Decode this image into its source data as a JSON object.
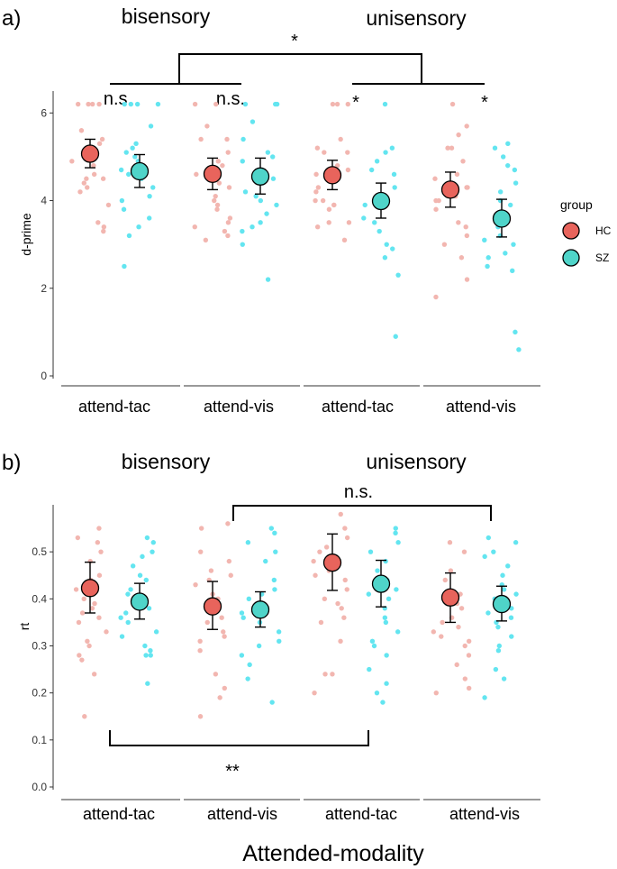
{
  "figure": {
    "x_title": "Attended-modality",
    "colors": {
      "HC": "#e8645c",
      "HC_jitter": "#f2b6b0",
      "SZ": "#4fd4c9",
      "SZ_jitter": "#63e5f0",
      "axis": "#333333",
      "bracket": "#000000"
    }
  },
  "legend": {
    "title": "group",
    "items": [
      {
        "name": "HC",
        "label": "HC",
        "color": "#e8645c"
      },
      {
        "name": "SZ",
        "label": "SZ",
        "color": "#4fd4c9"
      }
    ]
  },
  "chart_data": [
    {
      "type": "scatter",
      "panel": "a)",
      "title": "",
      "ylabel": "d-prime",
      "xlabel": "",
      "ylim": [
        0,
        6.5
      ],
      "yticks": [
        0,
        2,
        4,
        6
      ],
      "groups": [
        "bisensory",
        "unisensory"
      ],
      "categories": [
        "attend-tac",
        "attend-vis",
        "attend-tac",
        "attend-vis"
      ],
      "series": [
        {
          "name": "HC",
          "mean": [
            5.07,
            4.61,
            4.58,
            4.25
          ],
          "ci_low": [
            4.75,
            4.25,
            4.25,
            3.85
          ],
          "ci_high": [
            5.4,
            4.97,
            4.92,
            4.65
          ],
          "points": [
            [
              6.2,
              6.2,
              6.2,
              6.2,
              5.6,
              5.4,
              5.3,
              5.2,
              5.1,
              5.0,
              4.9,
              4.8,
              4.6,
              4.5,
              4.5,
              4.4,
              4.3,
              4.2,
              3.9,
              3.5,
              3.4,
              3.3
            ],
            [
              6.2,
              6.2,
              5.7,
              5.4,
              5.4,
              5.1,
              4.9,
              4.8,
              4.6,
              4.4,
              4.3,
              4.1,
              4.0,
              3.9,
              3.8,
              3.6,
              3.5,
              3.4,
              3.3,
              3.2,
              3.1
            ],
            [
              6.2,
              6.2,
              6.2,
              5.4,
              5.2,
              5.1,
              5.1,
              4.8,
              4.7,
              4.6,
              4.3,
              4.2,
              4.0,
              4.0,
              3.9,
              3.9,
              3.8,
              3.5,
              3.5,
              3.4,
              3.1
            ],
            [
              6.2,
              5.7,
              5.5,
              5.2,
              5.2,
              4.9,
              4.6,
              4.5,
              4.3,
              4.3,
              4.1,
              4.0,
              4.0,
              3.8,
              3.5,
              3.4,
              3.2,
              3.0,
              2.7,
              2.2,
              1.8
            ]
          ]
        },
        {
          "name": "SZ",
          "mean": [
            4.67,
            4.55,
            3.99,
            3.59
          ],
          "ci_low": [
            4.3,
            4.15,
            3.6,
            3.17
          ],
          "ci_high": [
            5.05,
            4.97,
            4.4,
            4.03
          ],
          "points": [
            [
              6.2,
              6.2,
              6.2,
              6.2,
              5.7,
              5.3,
              5.2,
              5.1,
              5.0,
              4.9,
              4.7,
              4.6,
              4.5,
              4.3,
              4.1,
              4.0,
              3.8,
              3.6,
              3.4,
              3.2,
              2.5
            ],
            [
              6.2,
              6.2,
              6.2,
              5.8,
              5.4,
              5.1,
              5.0,
              4.9,
              4.7,
              4.5,
              4.4,
              4.2,
              4.1,
              4.0,
              3.9,
              3.7,
              3.5,
              3.4,
              3.3,
              3.0,
              2.2
            ],
            [
              6.2,
              5.2,
              5.1,
              4.9,
              4.7,
              4.6,
              4.3,
              4.1,
              3.9,
              3.6,
              3.5,
              3.3,
              3.0,
              2.9,
              2.7,
              2.3,
              0.9
            ],
            [
              5.3,
              5.2,
              5.0,
              4.8,
              4.7,
              4.4,
              4.2,
              4.0,
              3.9,
              3.7,
              3.4,
              3.2,
              3.1,
              3.0,
              2.8,
              2.7,
              2.5,
              2.4,
              1.0,
              0.6
            ]
          ]
        }
      ],
      "annotations": {
        "bisensory_label": "bisensory",
        "unisensory_label": "unisensory",
        "top_star": "*",
        "left_ns_1": "n.s.",
        "left_ns_2": "n.s.",
        "right_star_1": "*",
        "right_star_2": "*"
      }
    },
    {
      "type": "scatter",
      "panel": "b)",
      "title": "",
      "ylabel": "rt",
      "xlabel": "Attended-modality",
      "ylim": [
        0,
        0.6
      ],
      "yticks": [
        0.0,
        0.1,
        0.2,
        0.3,
        0.4,
        0.5
      ],
      "groups": [
        "bisensory",
        "unisensory"
      ],
      "categories": [
        "attend-tac",
        "attend-vis",
        "attend-tac",
        "attend-vis"
      ],
      "series": [
        {
          "name": "HC",
          "mean": [
            0.423,
            0.384,
            0.477,
            0.403
          ],
          "ci_low": [
            0.37,
            0.335,
            0.418,
            0.35
          ],
          "ci_high": [
            0.478,
            0.437,
            0.538,
            0.455
          ],
          "points": [
            [
              0.55,
              0.53,
              0.52,
              0.5,
              0.48,
              0.45,
              0.44,
              0.42,
              0.4,
              0.39,
              0.38,
              0.37,
              0.36,
              0.35,
              0.33,
              0.31,
              0.3,
              0.28,
              0.27,
              0.24,
              0.15
            ],
            [
              0.56,
              0.55,
              0.5,
              0.48,
              0.46,
              0.45,
              0.44,
              0.43,
              0.41,
              0.4,
              0.38,
              0.37,
              0.36,
              0.35,
              0.33,
              0.32,
              0.31,
              0.29,
              0.24,
              0.21,
              0.19,
              0.15
            ],
            [
              0.58,
              0.55,
              0.53,
              0.51,
              0.5,
              0.48,
              0.46,
              0.45,
              0.44,
              0.42,
              0.4,
              0.39,
              0.38,
              0.36,
              0.35,
              0.31,
              0.24,
              0.24,
              0.2
            ],
            [
              0.52,
              0.5,
              0.46,
              0.44,
              0.41,
              0.39,
              0.38,
              0.36,
              0.35,
              0.34,
              0.33,
              0.32,
              0.31,
              0.3,
              0.28,
              0.26,
              0.23,
              0.21,
              0.2
            ]
          ]
        },
        {
          "name": "SZ",
          "mean": [
            0.394,
            0.377,
            0.432,
            0.389
          ],
          "ci_low": [
            0.357,
            0.34,
            0.383,
            0.353
          ],
          "ci_high": [
            0.433,
            0.415,
            0.482,
            0.427
          ],
          "points": [
            [
              0.53,
              0.52,
              0.5,
              0.49,
              0.47,
              0.45,
              0.44,
              0.42,
              0.41,
              0.4,
              0.39,
              0.38,
              0.37,
              0.36,
              0.35,
              0.33,
              0.32,
              0.3,
              0.29,
              0.28,
              0.28,
              0.22
            ],
            [
              0.55,
              0.54,
              0.52,
              0.5,
              0.48,
              0.44,
              0.42,
              0.41,
              0.4,
              0.39,
              0.38,
              0.37,
              0.36,
              0.35,
              0.33,
              0.31,
              0.3,
              0.28,
              0.26,
              0.23,
              0.18
            ],
            [
              0.55,
              0.54,
              0.52,
              0.5,
              0.48,
              0.46,
              0.44,
              0.42,
              0.41,
              0.4,
              0.38,
              0.36,
              0.35,
              0.33,
              0.31,
              0.3,
              0.28,
              0.25,
              0.22,
              0.2,
              0.18
            ],
            [
              0.53,
              0.52,
              0.5,
              0.49,
              0.47,
              0.45,
              0.43,
              0.42,
              0.41,
              0.4,
              0.38,
              0.37,
              0.36,
              0.35,
              0.34,
              0.32,
              0.3,
              0.29,
              0.25,
              0.23,
              0.19
            ]
          ]
        }
      ],
      "annotations": {
        "bisensory_label": "bisensory",
        "unisensory_label": "unisensory",
        "top_ns": "n.s.",
        "bottom_stars": "**"
      }
    }
  ]
}
